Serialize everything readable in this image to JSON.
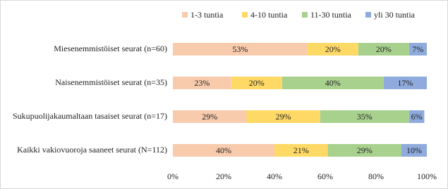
{
  "chart_data": {
    "type": "stacked-barh",
    "categories": [
      "Miesenemmistöiset seurat (n=60)",
      "Naisenemmistöiset seurat (n=35)",
      "Sukupuolijakaumaltaan tasaiset seurat (n=17)",
      "Kaikki vakiovuoroja saaneet seurat (N=112)"
    ],
    "series": [
      {
        "name": "1-3 tuntia",
        "color": "#f8cbad",
        "values": [
          53,
          23,
          29,
          40
        ],
        "value_labels": [
          "53%",
          "23%",
          "29%",
          "40%"
        ]
      },
      {
        "name": "4-10 tuntia",
        "color": "#ffd966",
        "values": [
          20,
          20,
          29,
          21
        ],
        "value_labels": [
          "20%",
          "20%",
          "29%",
          "21%"
        ]
      },
      {
        "name": "11-30 tuntia",
        "color": "#a9d18e",
        "values": [
          20,
          40,
          35,
          29
        ],
        "value_labels": [
          "20%",
          "40%",
          "35%",
          "29%"
        ]
      },
      {
        "name": "yli 30 tuntia",
        "color": "#8faadc",
        "values": [
          7,
          17,
          6,
          10
        ],
        "value_labels": [
          "7%",
          "17%",
          "6%",
          "10%"
        ]
      }
    ],
    "xlim": [
      0,
      100
    ],
    "xticks": [
      {
        "value": 0,
        "label": "0%"
      },
      {
        "value": 20,
        "label": "20%"
      },
      {
        "value": 40,
        "label": "40%"
      },
      {
        "value": 60,
        "label": "60%"
      },
      {
        "value": 80,
        "label": "80%"
      },
      {
        "value": 100,
        "label": "100%"
      }
    ],
    "grid": false,
    "legend": "top"
  }
}
